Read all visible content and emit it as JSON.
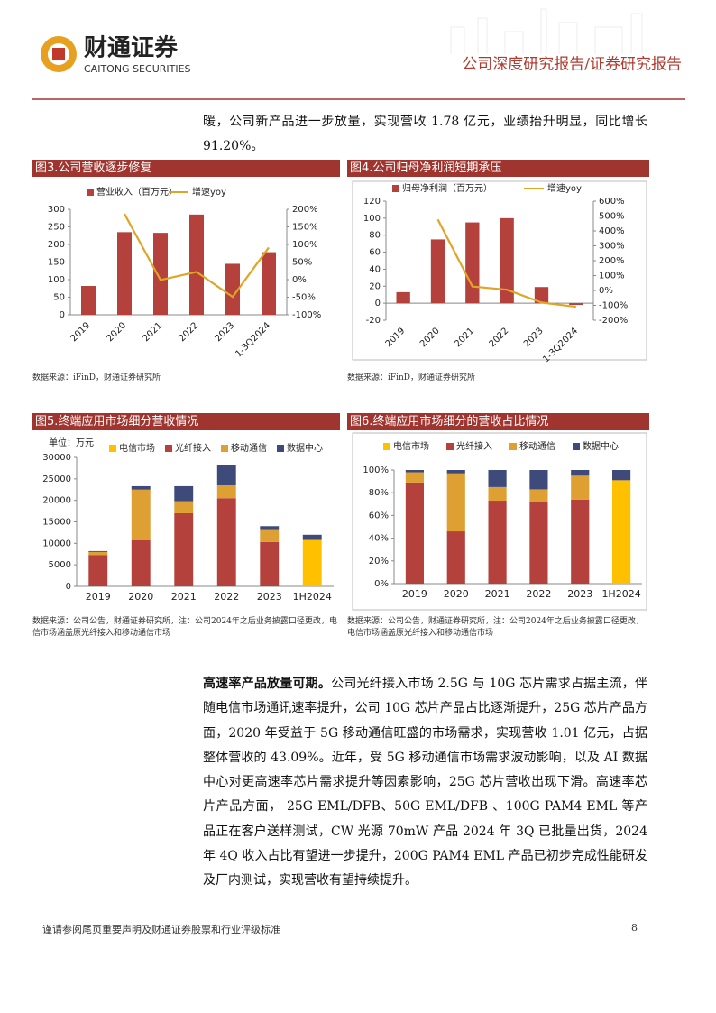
{
  "header": {
    "company": "财通证券",
    "company_en": "CAITONG SECURITIES",
    "report_type": "公司深度研究报告/证券研究报告"
  },
  "paragraphs": [
    "暖，公司新产品进一步放量，实现营收 1.78 亿元，业绩抬升明显，同比增长91.20%。",
    {
      "lead": "高速率产品放量可期。",
      "text": "公司光纤接入市场 2.5G 与 10G 芯片需求占据主流，伴随电信市场通讯速率提升，公司 10G 芯片产品占比逐渐提升，25G 芯片产品方面，2020 年受益于 5G 移动通信旺盛的市场需求，实现营收 1.01 亿元，占据整体营收的 43.09%。近年，受 5G 移动通信市场需求波动影响，以及 AI 数据中心对更高速率芯片需求提升等因素影响，25G 芯片营收出现下滑。高速率芯片产品方面， 25G EML/DFB、50G EML/DFB 、100G PAM4 EML 等产品正在客户送样测试，CW 光源 70mW 产品 2024 年 3Q 已批量出货，2024 年 4Q 收入占比有望进一步提升，200G PAM4 EML 产品已初步完成性能研发及厂内测试，实现营收有望持续提升。"
    }
  ],
  "chart_data": [
    {
      "type": "combo",
      "title": "图3.公司营收逐步修复",
      "source": "数据来源：iFinD，财通证券研究所",
      "categories": [
        "2019",
        "2020",
        "2021",
        "2022",
        "2023",
        "1-3Q2024"
      ],
      "series": [
        {
          "name": "营业收入（百万元）",
          "type": "bar",
          "color": "#b5413c",
          "values": [
            82,
            235,
            233,
            285,
            145,
            178
          ]
        },
        {
          "name": "增速yoy",
          "type": "line",
          "axis": "y2",
          "color": "#e0a526",
          "values": [
            null,
            187,
            -1,
            22,
            -49,
            91.2
          ]
        }
      ],
      "ylim": [
        0,
        300
      ],
      "yticks": [
        0,
        50,
        100,
        150,
        200,
        250,
        300
      ],
      "y2lim": [
        -100,
        200
      ],
      "y2ticks": [
        {
          "value": -100,
          "label": "-100%"
        },
        {
          "value": -50,
          "label": "-50%"
        },
        {
          "value": 0,
          "label": "0%"
        },
        {
          "value": 50,
          "label": "50%"
        },
        {
          "value": 100,
          "label": "100%"
        },
        {
          "value": 150,
          "label": "150%"
        },
        {
          "value": 200,
          "label": "200%"
        }
      ],
      "rotate_labels": true,
      "grid": false
    },
    {
      "type": "combo",
      "title": "图4.公司归母净利润短期承压",
      "source": "数据来源：iFinD，财通证券研究所",
      "categories": [
        "2019",
        "2020",
        "2021",
        "2022",
        "2023",
        "1-3Q2024"
      ],
      "series": [
        {
          "name": "归母净利润（百万元）",
          "type": "bar",
          "color": "#b5413c",
          "values": [
            13,
            75,
            95,
            100,
            19,
            -2
          ]
        },
        {
          "name": "增速yoy",
          "type": "line",
          "axis": "y2",
          "color": "#e0a526",
          "values": [
            null,
            477,
            27,
            5,
            -81,
            -110
          ]
        }
      ],
      "ylim": [
        -20,
        120
      ],
      "yticks": [
        -20,
        0,
        20,
        40,
        60,
        80,
        100,
        120
      ],
      "y2lim": [
        -200,
        600
      ],
      "y2ticks": [
        {
          "value": -200,
          "label": "-200%"
        },
        {
          "value": -100,
          "label": "-100%"
        },
        {
          "value": 0,
          "label": "0%"
        },
        {
          "value": 100,
          "label": "100%"
        },
        {
          "value": 200,
          "label": "200%"
        },
        {
          "value": 300,
          "label": "300%"
        },
        {
          "value": 400,
          "label": "400%"
        },
        {
          "value": 500,
          "label": "500%"
        },
        {
          "value": 600,
          "label": "600%"
        }
      ],
      "rotate_labels": true,
      "grid": false
    },
    {
      "type": "stacked",
      "title": "图5.终端应用市场细分营收情况",
      "source": "数据来源：公司公告，财通证券研究所，注：公司2024年之后业务披露口径更改，电信市场涵盖原光纤接入和移动通信市场",
      "unit": "单位：万元",
      "categories": [
        "2019",
        "2020",
        "2021",
        "2022",
        "2023",
        "1H2024"
      ],
      "series": [
        {
          "name": "电信市场",
          "color": "#ffc000",
          "values": [
            null,
            null,
            null,
            null,
            null,
            10800
          ]
        },
        {
          "name": "光纤接入",
          "color": "#b5413c",
          "values": [
            7300,
            10700,
            17000,
            20500,
            10300,
            null
          ]
        },
        {
          "name": "移动通信",
          "color": "#dfa033",
          "values": [
            700,
            11800,
            2800,
            3000,
            3000,
            null
          ]
        },
        {
          "name": "数据中心",
          "color": "#3d4a7a",
          "values": [
            200,
            800,
            3500,
            4800,
            700,
            1200
          ]
        }
      ],
      "ylim": [
        0,
        30000
      ],
      "yticks": [
        0,
        5000,
        10000,
        15000,
        20000,
        25000,
        30000
      ],
      "rotate_labels": false,
      "grid": false
    },
    {
      "type": "stacked",
      "title": "图6.终端应用市场细分的营收占比情况",
      "source": "数据来源：公司公告，财通证券研究所，注：公司2024年之后业务披露口径更改，电信市场涵盖原光纤接入和移动通信市场",
      "categories": [
        "2019",
        "2020",
        "2021",
        "2022",
        "2023",
        "1H2024"
      ],
      "series": [
        {
          "name": "电信市场",
          "color": "#ffc000",
          "values": [
            null,
            null,
            null,
            null,
            null,
            91
          ]
        },
        {
          "name": "光纤接入",
          "color": "#b5413c",
          "values": [
            89,
            46,
            73,
            72,
            74,
            null
          ]
        },
        {
          "name": "移动通信",
          "color": "#dfa033",
          "values": [
            9,
            51,
            12,
            11,
            21,
            null
          ]
        },
        {
          "name": "数据中心",
          "color": "#3d4a7a",
          "values": [
            2,
            3,
            15,
            17,
            5,
            9
          ]
        }
      ],
      "ylim": [
        0,
        100
      ],
      "yticks": [
        {
          "value": 0,
          "label": "0%"
        },
        {
          "value": 20,
          "label": "20%"
        },
        {
          "value": 40,
          "label": "40%"
        },
        {
          "value": 60,
          "label": "60%"
        },
        {
          "value": 80,
          "label": "80%"
        },
        {
          "value": 100,
          "label": "100%"
        }
      ],
      "rotate_labels": false,
      "grid": false
    }
  ],
  "footer": {
    "note": "谨请参阅尾页重要声明及财通证券股票和行业评级标准",
    "page": "8"
  }
}
